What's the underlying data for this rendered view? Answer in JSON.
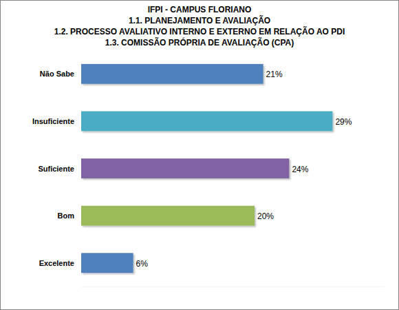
{
  "chart_data": {
    "type": "bar",
    "orientation": "horizontal",
    "title": "IFPI - CAMPUS FLORIANO",
    "subtitle": [
      "1.1. PLANEJAMENTO E AVALIAÇÃO",
      "1.2. PROCESSO AVALIATIVO INTERNO E EXTERNO EM RELAÇÃO AO PDI",
      "1.3. COMISSÃO PRÓPRIA DE AVALIAÇÃO (CPA)"
    ],
    "categories": [
      "Não Sabe",
      "Insuficiente",
      "Suficiente",
      "Bom",
      "Excelente"
    ],
    "values": [
      21,
      29,
      24,
      20,
      6
    ],
    "value_labels": [
      "21%",
      "29%",
      "24%",
      "20%",
      "6%"
    ],
    "colors": [
      "#4f81bd",
      "#4bacc6",
      "#8064a2",
      "#9bbb59",
      "#4f81bd"
    ],
    "xlim": [
      0,
      35
    ],
    "xticks": [],
    "grid": false,
    "data_labels": true,
    "tick_labels": "y"
  }
}
